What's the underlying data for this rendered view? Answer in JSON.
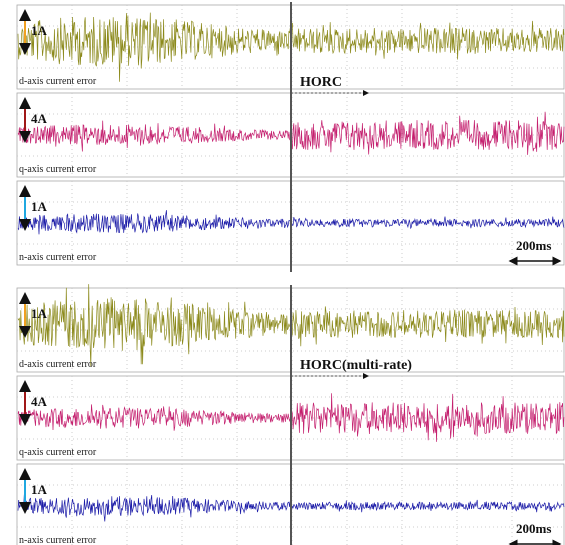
{
  "panels": [
    {
      "method": "HORC",
      "scale": "200ms",
      "traces": [
        {
          "amplitude": "1A",
          "label": "d-axis current error"
        },
        {
          "amplitude": "4A",
          "label": "q-axis current error"
        },
        {
          "amplitude": "1A",
          "label": "n-axis current error"
        }
      ]
    },
    {
      "method": "HORC(multi-rate)",
      "scale": "200ms",
      "traces": [
        {
          "amplitude": "1A",
          "label": "d-axis current error"
        },
        {
          "amplitude": "4A",
          "label": "q-axis current error"
        },
        {
          "amplitude": "1A",
          "label": "n-axis current error"
        }
      ]
    }
  ]
}
